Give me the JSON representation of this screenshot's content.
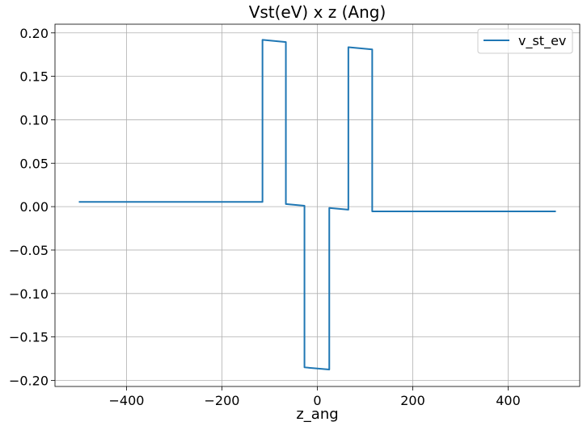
{
  "chart_data": {
    "type": "line",
    "title": "Vst(eV) x z (Ang)",
    "xlabel": "z_ang",
    "ylabel": "",
    "xlim": [
      -550,
      550
    ],
    "ylim": [
      -0.207,
      0.21
    ],
    "xticks": [
      -400,
      -200,
      0,
      200,
      400
    ],
    "xtick_labels": [
      "−400",
      "−200",
      "0",
      "200",
      "400"
    ],
    "yticks": [
      -0.2,
      -0.15,
      -0.1,
      -0.05,
      0.0,
      0.05,
      0.1,
      0.15,
      0.2
    ],
    "ytick_labels": [
      "−0.20",
      "−0.15",
      "−0.10",
      "−0.05",
      "0.00",
      "0.05",
      "0.10",
      "0.15",
      "0.20"
    ],
    "grid": true,
    "legend_position": "top-right",
    "series": [
      {
        "name": "v_st_ev",
        "color": "#1f77b4",
        "x": [
          -500,
          -115,
          -115,
          -66,
          -66,
          -27,
          -27,
          25,
          25,
          65,
          65,
          115,
          115,
          500
        ],
        "y": [
          0.0055,
          0.0055,
          0.192,
          0.1895,
          0.003,
          0.001,
          -0.185,
          -0.1875,
          -0.0015,
          -0.0035,
          0.1835,
          0.181,
          -0.0055,
          -0.0055
        ]
      }
    ]
  }
}
